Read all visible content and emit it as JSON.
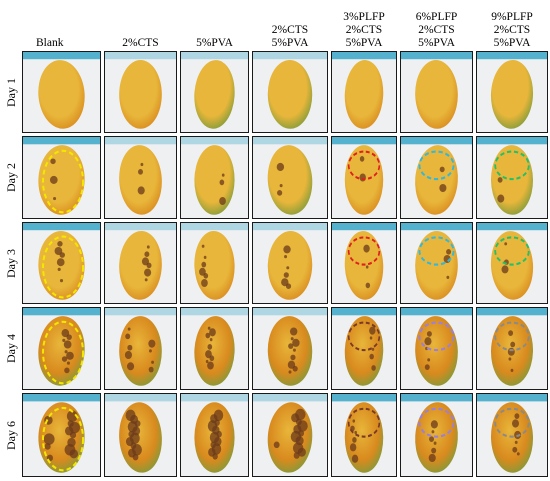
{
  "figure": {
    "columns": [
      {
        "label": "Blank"
      },
      {
        "label": "2%CTS"
      },
      {
        "label": "5%PVA"
      },
      {
        "label": "2%CTS\n5%PVA"
      },
      {
        "label": "3%PLFP\n2%CTS\n5%PVA"
      },
      {
        "label": "6%PLFP\n2%CTS\n5%PVA"
      },
      {
        "label": "9%PLFP\n2%CTS\n5%PVA"
      }
    ],
    "rows": [
      {
        "label": "Day 1"
      },
      {
        "label": "Day 2"
      },
      {
        "label": "Day 3"
      },
      {
        "label": "Day 4"
      },
      {
        "label": "Day 6"
      }
    ],
    "colors": {
      "background_tray": "#eef0f2",
      "crate_blue": "#3aa7c9",
      "mango_yellow": "#e8b63a",
      "mango_orange": "#d98a1e",
      "mango_green": "#7f9a3a",
      "spot_brown": "#6b3a1a",
      "circle_yellow": "#f3e600",
      "circle_red": "#e02020",
      "circle_cyan": "#2fb8e0",
      "circle_green": "#23c06a",
      "circle_purple": "#9a7fe0",
      "circle_gray": "#8a8a8a",
      "circle_brown": "#7a3a2a"
    }
  }
}
